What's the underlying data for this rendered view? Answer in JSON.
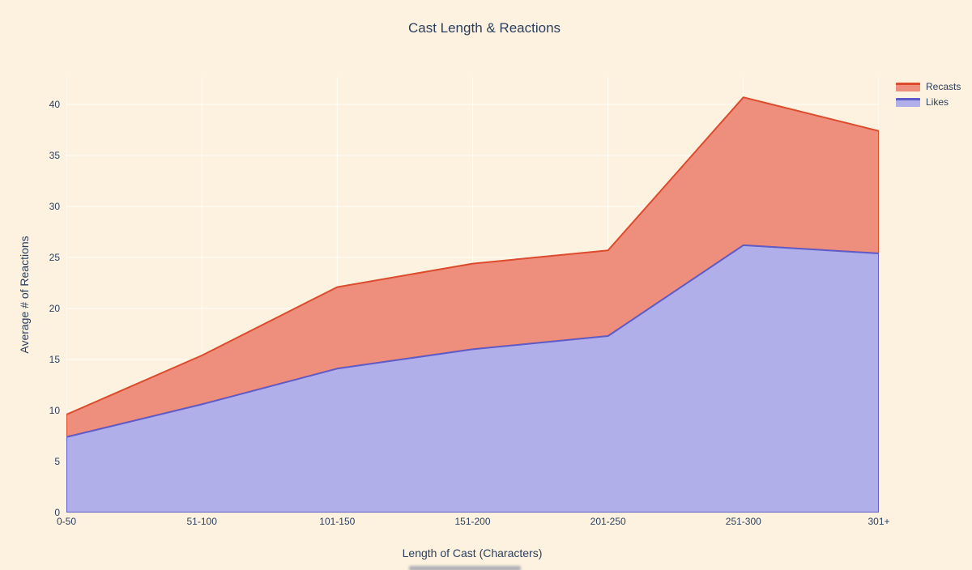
{
  "page": {
    "background_color": "#fcf2df",
    "text_color": "#2a3f5f"
  },
  "chart_data": {
    "type": "area",
    "stacked": true,
    "title": "Cast Length & Reactions",
    "xlabel": "Length of Cast (Characters)",
    "ylabel": "Average # of Reactions",
    "categories": [
      "0-50",
      "51-100",
      "101-150",
      "151-200",
      "201-250",
      "251-300",
      "301+"
    ],
    "series": [
      {
        "name": "Recasts",
        "values": [
          2.2,
          4.8,
          8.0,
          8.4,
          8.4,
          14.5,
          12.0
        ],
        "line_color": "#dd4b2d",
        "fill_color": "#ee8f7d"
      },
      {
        "name": "Likes",
        "values": [
          7.4,
          10.6,
          14.1,
          16.0,
          17.3,
          26.2,
          25.4
        ],
        "line_color": "#5d5cc8",
        "fill_color": "#b0afe9"
      }
    ],
    "stacked_totals": [
      9.6,
      15.4,
      22.1,
      24.4,
      25.7,
      40.7,
      37.4
    ],
    "yticks": [
      0,
      5,
      10,
      15,
      20,
      25,
      30,
      35,
      40
    ],
    "ylim": [
      0,
      42.7
    ],
    "grid": true,
    "gridline_color": "rgba(255,255,255,0.85)",
    "legend_position": "top-right"
  }
}
